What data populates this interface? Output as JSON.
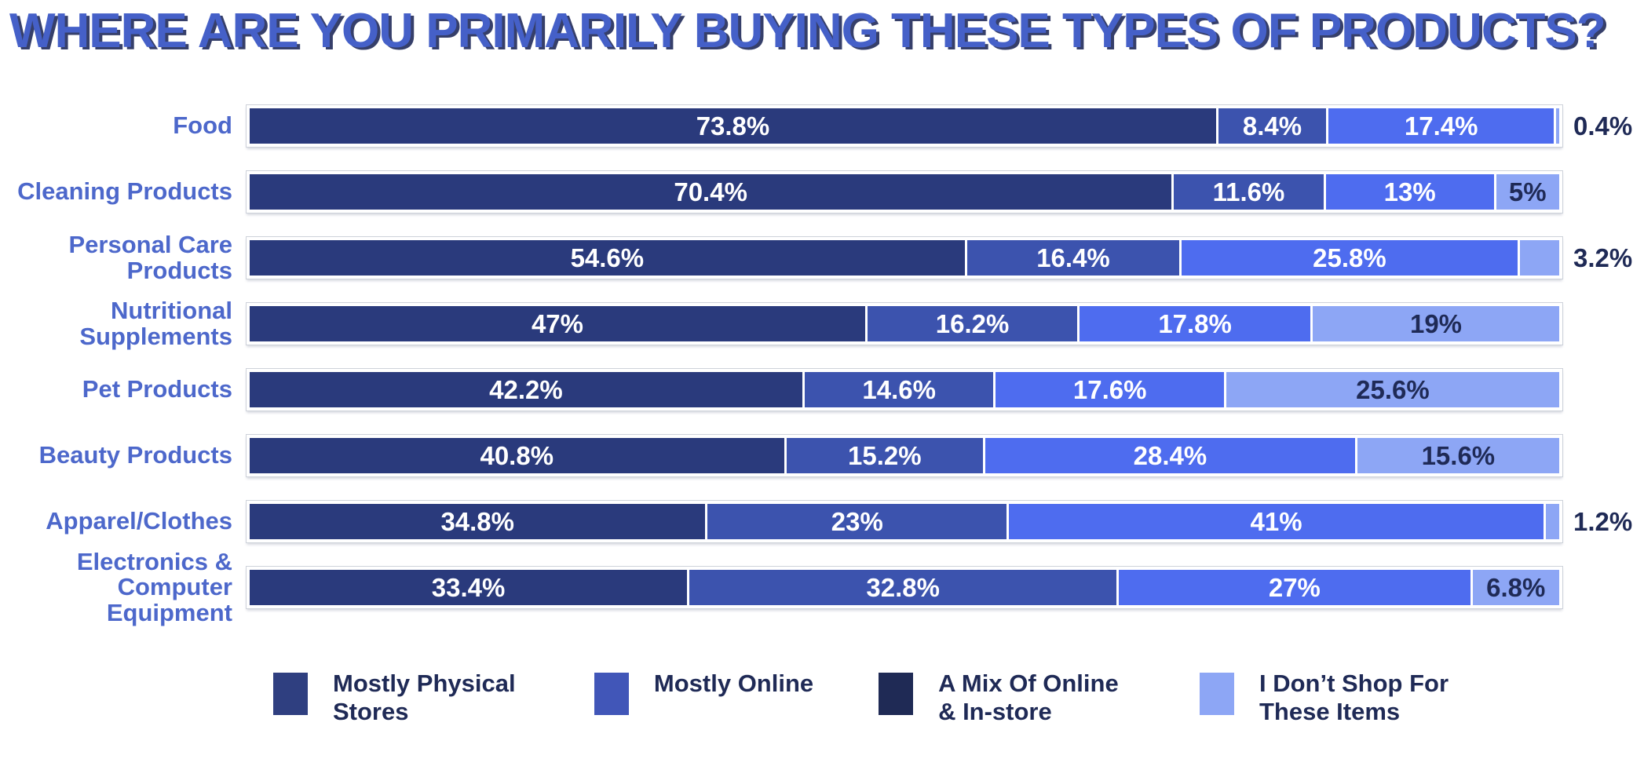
{
  "title": "WHERE ARE YOU PRIMARILY BUYING THESE TYPES OF PRODUCTS?",
  "colors": {
    "background": "#FFFFFF",
    "title_text": "#4560C8",
    "title_shadow": "#202A5A",
    "category_label_text": "#4D68CB",
    "segment_label_light": "#FFFFFF",
    "segment_label_dark": "#1F2A56",
    "bar_border": "#FFFFFF"
  },
  "chart_data": {
    "type": "bar",
    "variant": "horizontal-stacked",
    "title": "WHERE ARE YOU PRIMARILY BUYING THESE TYPES OF PRODUCTS?",
    "xlim": [
      0,
      100
    ],
    "grid": false,
    "legend_position": "bottom",
    "categories": [
      "Food",
      "Cleaning Products",
      "Personal Care Products",
      "Nutritional Supplements",
      "Pet Products",
      "Beauty Products",
      "Apparel/Clothes",
      "Electronics & Computer Equipment"
    ],
    "series": [
      {
        "name": "Mostly Physical Stores",
        "color": "#2A3A7C",
        "text_color": "#FFFFFF",
        "values": [
          73.8,
          70.4,
          54.6,
          47,
          42.2,
          40.8,
          34.8,
          33.4
        ],
        "labels": [
          "73.8%",
          "70.4%",
          "54.6%",
          "47%",
          "42.2%",
          "40.8%",
          "34.8%",
          "33.4%"
        ]
      },
      {
        "name": "Mostly Online",
        "color": "#3C53AE",
        "text_color": "#FFFFFF",
        "values": [
          8.4,
          11.6,
          16.4,
          16.2,
          14.6,
          15.2,
          23,
          32.8
        ],
        "labels": [
          "8.4%",
          "11.6%",
          "16.4%",
          "16.2%",
          "14.6%",
          "15.2%",
          "23%",
          "32.8%"
        ]
      },
      {
        "name": "A Mix Of Online & In-store",
        "color": "#4E6CEF",
        "text_color": "#FFFFFF",
        "values": [
          17.4,
          13,
          25.8,
          17.8,
          17.6,
          28.4,
          41,
          27
        ],
        "labels": [
          "17.4%",
          "13%",
          "25.8%",
          "17.8%",
          "17.6%",
          "28.4%",
          "41%",
          "27%"
        ]
      },
      {
        "name": "I Don’t Shop For These Items",
        "color": "#8DA6F5",
        "text_color": "#1F2A56",
        "values": [
          0.4,
          5,
          3.2,
          19,
          25.6,
          15.6,
          1.2,
          6.8
        ],
        "labels": [
          "0.4%",
          "5%",
          "3.2%",
          "19%",
          "25.6%",
          "15.6%",
          "1.2%",
          "6.8%"
        ]
      }
    ]
  },
  "legend": {
    "items": [
      {
        "label": "Mostly Physical Stores",
        "color": "#2F3F80"
      },
      {
        "label": "Mostly Online",
        "color": "#4156B8"
      },
      {
        "label": "A Mix Of Online & In-store",
        "color": "#1F2A55"
      },
      {
        "label": "I Don’t Shop For These Items",
        "color": "#8DA6F5"
      }
    ]
  }
}
